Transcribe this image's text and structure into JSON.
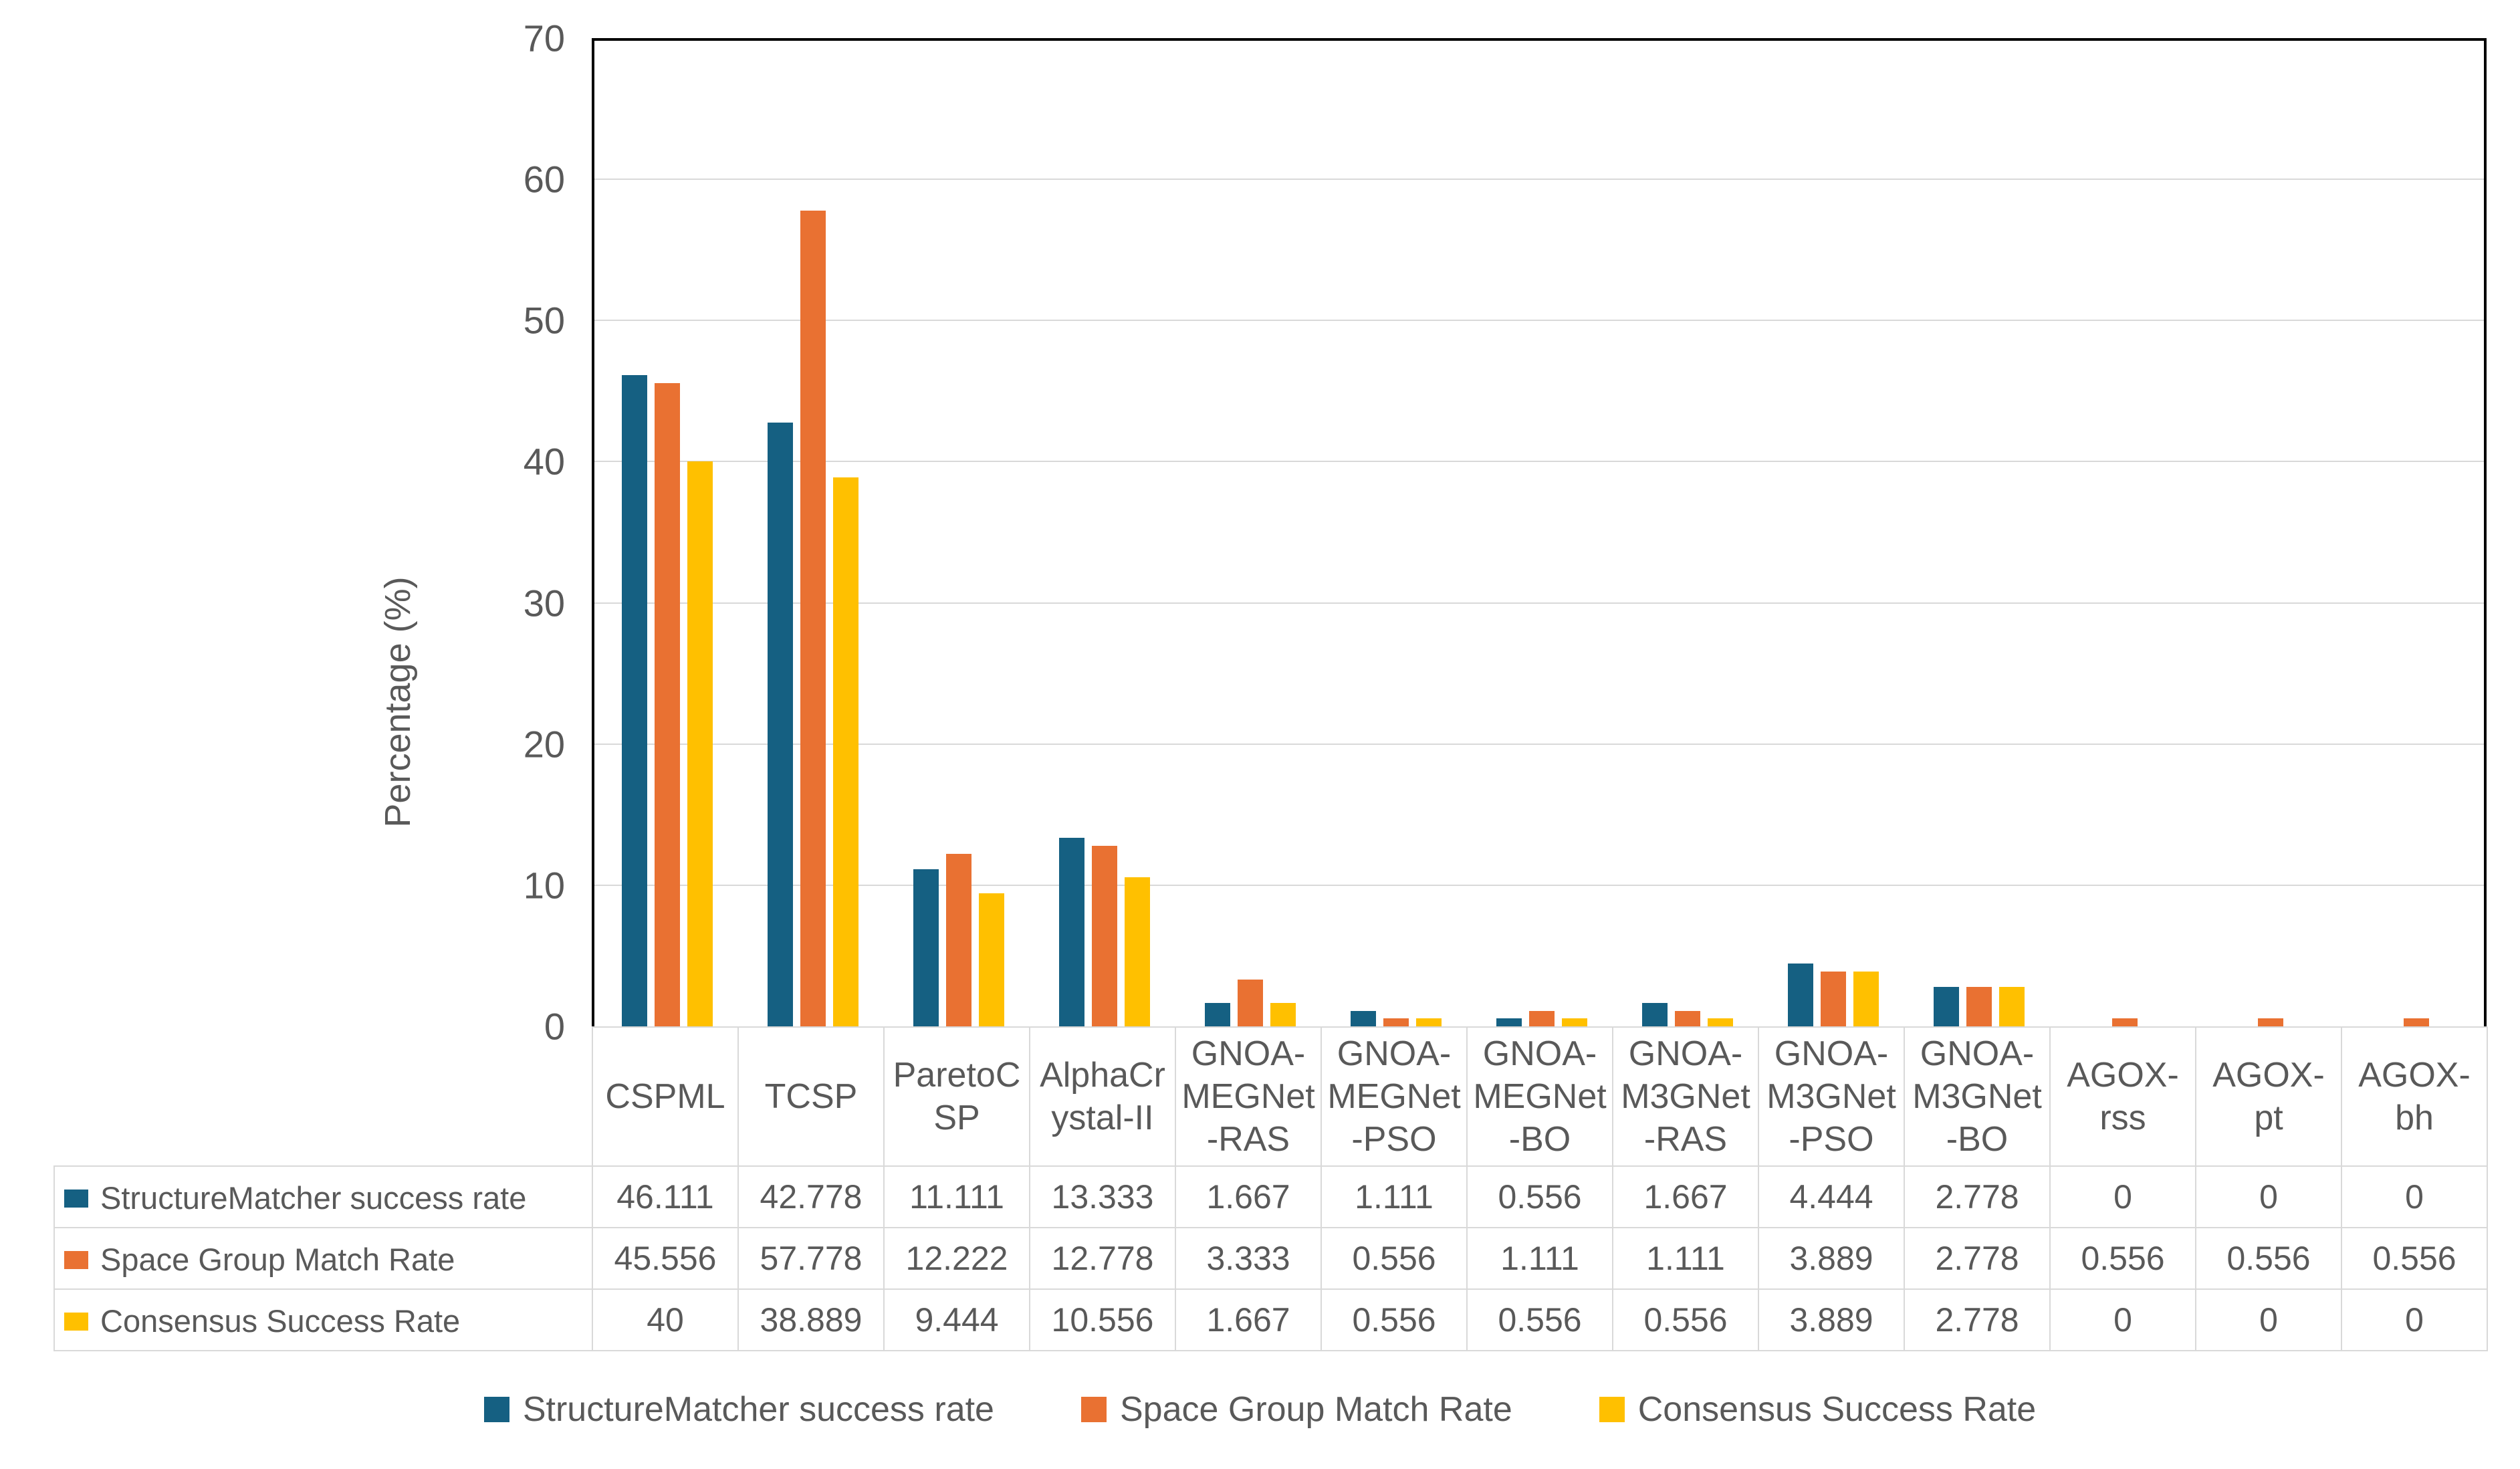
{
  "chart_data": {
    "type": "bar",
    "title": "",
    "xlabel": "",
    "ylabel": "Percentage (%)",
    "ylim": [
      0,
      70
    ],
    "yticks": [
      0,
      10,
      20,
      30,
      40,
      50,
      60,
      70
    ],
    "grid": true,
    "legend_position": "bottom",
    "data_table_shown": true,
    "categories": [
      "CSPML",
      "TCSP",
      "ParetoCSP",
      "AlphaCrystal-II",
      "GNOA-MEGNet-RAS",
      "GNOA-MEGNet-PSO",
      "GNOA-MEGNet-BO",
      "GNOA-M3GNet-RAS",
      "GNOA-M3GNet-PSO",
      "GNOA-M3GNet-BO",
      "AGOX-rss",
      "AGOX-pt",
      "AGOX-bh"
    ],
    "category_display": [
      "CSPML",
      "TCSP",
      "ParetoC\nSP",
      "AlphaCr\nystal-II",
      "GNOA-\nMEGNet\n-RAS",
      "GNOA-\nMEGNet\n-PSO",
      "GNOA-\nMEGNet\n-BO",
      "GNOA-\nM3GNet\n-RAS",
      "GNOA-\nM3GNet\n-PSO",
      "GNOA-\nM3GNet\n-BO",
      "AGOX-\nrss",
      "AGOX-\npt",
      "AGOX-\nbh"
    ],
    "series": [
      {
        "name": "StructureMatcher success rate",
        "color": "#156082",
        "values": [
          46.111,
          42.778,
          11.111,
          13.333,
          1.667,
          1.111,
          0.556,
          1.667,
          4.444,
          2.778,
          0,
          0,
          0
        ]
      },
      {
        "name": "Space Group Match Rate",
        "color": "#E97132",
        "values": [
          45.556,
          57.778,
          12.222,
          12.778,
          3.333,
          0.556,
          1.111,
          1.111,
          3.889,
          2.778,
          0.556,
          0.556,
          0.556
        ]
      },
      {
        "name": "Consensus Success Rate",
        "color": "#FFC000",
        "values": [
          40,
          38.889,
          9.444,
          10.556,
          1.667,
          0.556,
          0.556,
          0.556,
          3.889,
          2.778,
          0,
          0,
          0
        ]
      }
    ]
  },
  "colors": {
    "axis_border": "#000000",
    "gridline": "#D9D9D9",
    "text": "#595959",
    "background": "#FFFFFF"
  }
}
